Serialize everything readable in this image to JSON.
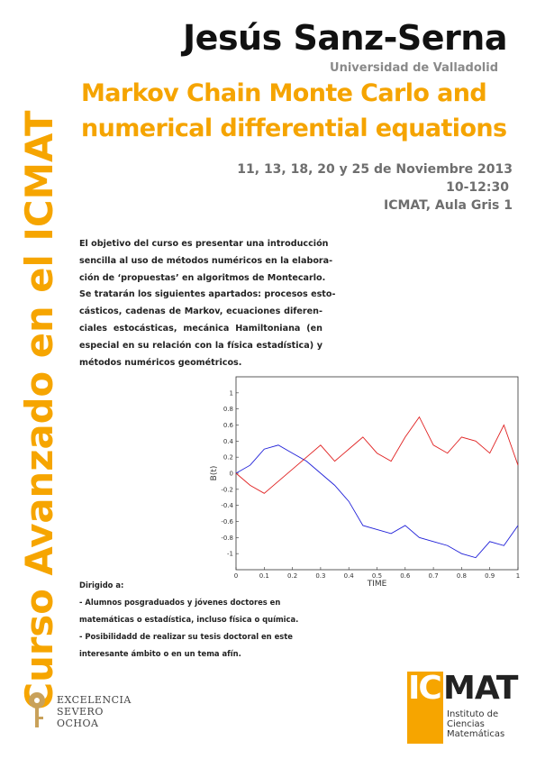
{
  "sidebar": "Curso Avanzado en el ICMAT",
  "header": {
    "speaker": "Jesús Sanz-Serna",
    "affiliation": "Universidad de Valladolid",
    "title": [
      "Markov Chain Monte Carlo and",
      "numerical differential equations"
    ],
    "dates": "11, 13, 18, 20 y 25 de Noviembre 2013",
    "time": "10-12:30",
    "place": "ICMAT, Aula Gris 1"
  },
  "description": [
    " El objetivo del curso es presentar una introducción",
    "sencilla al uso de métodos numéricos en la elabora-",
    "ción de ‘propuestas’ en algoritmos de Montecarlo.",
    "Se tratarán los siguientes apartados: procesos esto-",
    "cásticos, cadenas de Markov, ecuaciones diferen-",
    "ciales estocásticas,  mecánica Hamiltoniana (en",
    "especial en su relación con la física estadística) y",
    "métodos numéricos geométricos."
  ],
  "audience": {
    "heading": "Dirigido a:",
    "items": [
      "- Alumnos posgraduados y jóvenes doctores en matemáticas o estadística, incluso física o química.",
      "- Posibilidadd de realizar su tesis doctoral  en este interesante ámbito o en un tema afín."
    ]
  },
  "logos": {
    "severo_ochoa": [
      "EXCELENCIA",
      "SEVERO",
      "OCHOA"
    ],
    "icmat": {
      "ic": "IC",
      "mat": "MAT",
      "name": [
        "Instituto de",
        "Ciencias",
        "Matemáticas"
      ]
    }
  },
  "chart_data": {
    "type": "line",
    "xlabel": "TIME",
    "ylabel": "B(t)",
    "x": [
      0,
      0.05,
      0.1,
      0.15,
      0.2,
      0.25,
      0.3,
      0.35,
      0.4,
      0.45,
      0.5,
      0.55,
      0.6,
      0.65,
      0.7,
      0.75,
      0.8,
      0.85,
      0.9,
      0.95,
      1
    ],
    "series": [
      {
        "name": "blue",
        "color": "#1f1fd8",
        "values": [
          0,
          0.1,
          0.3,
          0.35,
          0.25,
          0.15,
          0.0,
          -0.15,
          -0.35,
          -0.65,
          -0.7,
          -0.75,
          -0.65,
          -0.8,
          -0.85,
          -0.9,
          -1.0,
          -1.05,
          -0.85,
          -0.9,
          -0.65
        ]
      },
      {
        "name": "red",
        "color": "#e02020",
        "values": [
          0,
          -0.15,
          -0.25,
          -0.1,
          0.05,
          0.2,
          0.35,
          0.15,
          0.3,
          0.45,
          0.25,
          0.15,
          0.45,
          0.7,
          0.35,
          0.25,
          0.45,
          0.4,
          0.25,
          0.6,
          0.1
        ]
      }
    ],
    "xlim": [
      0,
      1
    ],
    "xticks": [
      0,
      0.1,
      0.2,
      0.3,
      0.4,
      0.5,
      0.6,
      0.7,
      0.8,
      0.9,
      1
    ],
    "ylim": [
      -1.2,
      1.2
    ],
    "yticks": [
      -1,
      -0.8,
      -0.6,
      -0.4,
      -0.2,
      0,
      0.2,
      0.4,
      0.6,
      0.8,
      1
    ]
  }
}
